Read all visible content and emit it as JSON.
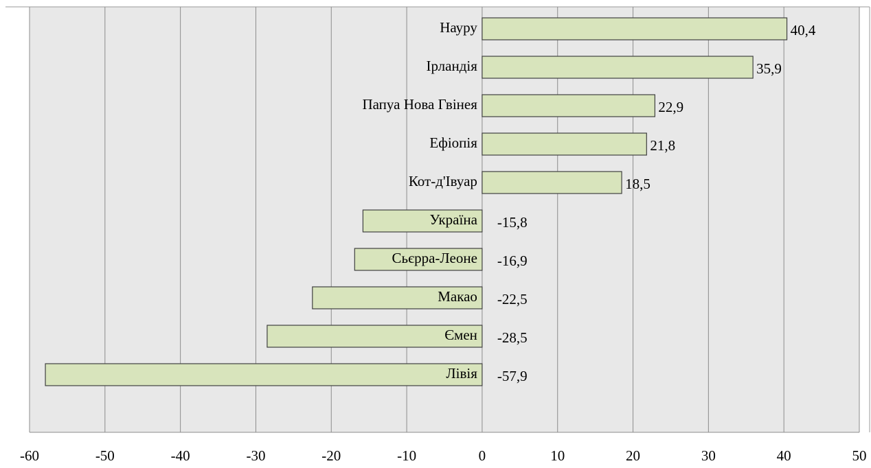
{
  "chart_data": {
    "type": "hbar",
    "categories": [
      "Науру",
      "Ірландія",
      "Папуа Нова Гвінея",
      "Ефіопія",
      "Кот-д'Івуар",
      "Україна",
      "Сьєрра-Леоне",
      "Макао",
      "Ємен",
      "Лівія"
    ],
    "values": [
      40.4,
      35.9,
      22.9,
      21.8,
      18.5,
      -15.8,
      -16.9,
      -22.5,
      -28.5,
      -57.9
    ],
    "value_labels": [
      "40,4",
      "35,9",
      "22,9",
      "21,8",
      "18,5",
      "-15,8",
      "-16,9",
      "-22,5",
      "-28,5",
      "-57,9"
    ],
    "color": "#d8e4bc",
    "xlim": [
      -60,
      50
    ],
    "xticks": [
      -60,
      -50,
      -40,
      -30,
      -20,
      -10,
      0,
      10,
      20,
      30,
      40,
      50
    ],
    "grid": true
  }
}
